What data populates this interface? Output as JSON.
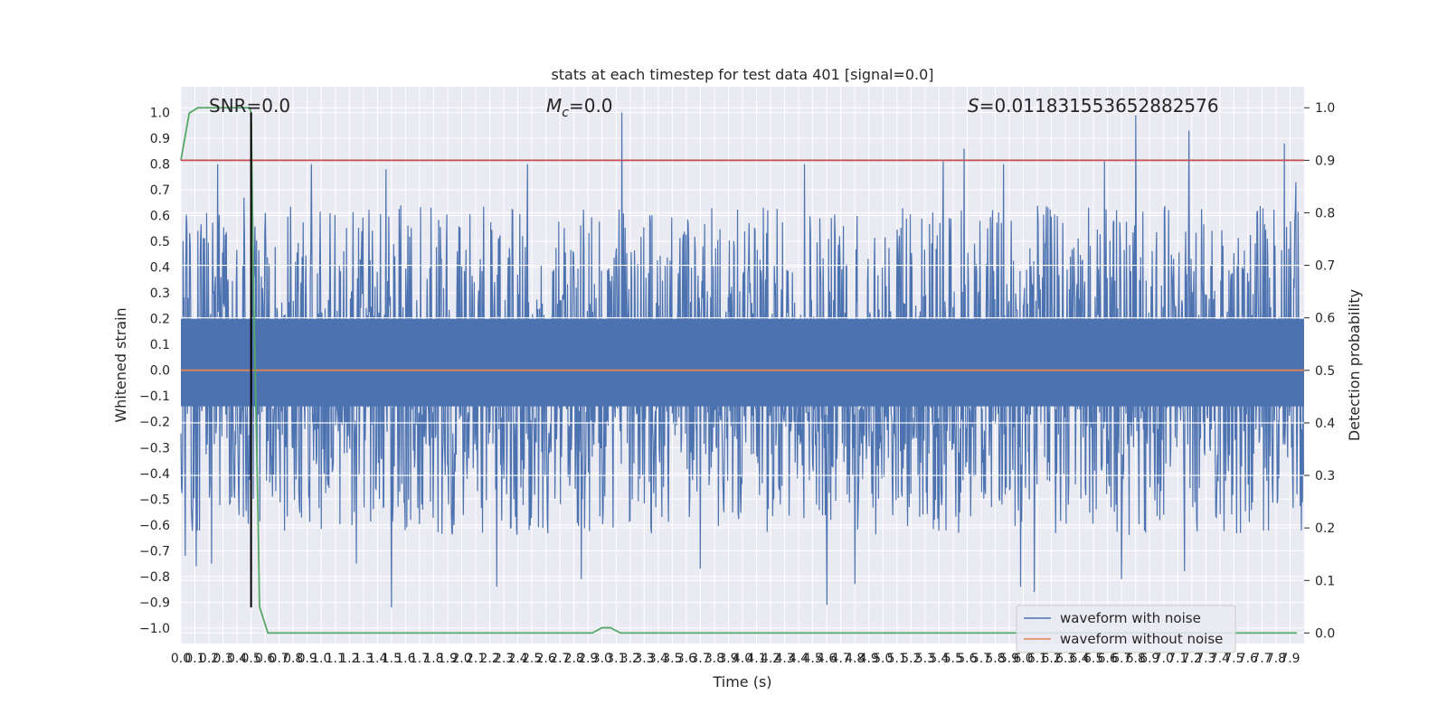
{
  "chart_data": {
    "type": "line",
    "title": "stats at each timestep for test data 401 [signal=0.0]",
    "xlabel": "Time (s)",
    "ylabel_left": "Whitened strain",
    "ylabel_right": "Detection probability",
    "xlim": [
      0.0,
      8.0
    ],
    "ylim_left": [
      -1.06,
      1.1
    ],
    "ylim_right": [
      -0.02,
      1.04
    ],
    "x_ticks": [
      "0.0",
      "0.1",
      "0.2",
      "0.3",
      "0.4",
      "0.5",
      "0.6",
      "0.7",
      "0.8",
      "0.9",
      "1.0",
      "1.1",
      "1.2",
      "1.3",
      "1.4",
      "1.5",
      "1.6",
      "1.7",
      "1.8",
      "1.9",
      "2.0",
      "2.1",
      "2.2",
      "2.3",
      "2.4",
      "2.5",
      "2.6",
      "2.7",
      "2.8",
      "2.9",
      "3.0",
      "3.1",
      "3.2",
      "3.3",
      "3.4",
      "3.5",
      "3.6",
      "3.7",
      "3.8",
      "3.9",
      "4.0",
      "4.1",
      "4.2",
      "4.3",
      "4.4",
      "4.5",
      "4.6",
      "4.7",
      "4.8",
      "4.9",
      "5.0",
      "5.1",
      "5.2",
      "5.3",
      "5.4",
      "5.5",
      "5.6",
      "5.7",
      "5.8",
      "5.9",
      "6.0",
      "6.1",
      "6.2",
      "6.3",
      "6.4",
      "6.5",
      "6.6",
      "6.7",
      "6.8",
      "6.9",
      "7.0",
      "7.1",
      "7.2",
      "7.3",
      "7.4",
      "7.5",
      "7.6",
      "7.7",
      "7.8",
      "7.9"
    ],
    "y_ticks_left": [
      "−1.0",
      "−0.9",
      "−0.8",
      "−0.7",
      "−0.6",
      "−0.5",
      "−0.4",
      "−0.3",
      "−0.2",
      "−0.1",
      "0.0",
      "0.1",
      "0.2",
      "0.3",
      "0.4",
      "0.5",
      "0.6",
      "0.7",
      "0.8",
      "0.9",
      "1.0"
    ],
    "y_ticks_right": [
      "0.0",
      "0.1",
      "0.2",
      "0.3",
      "0.4",
      "0.5",
      "0.6",
      "0.7",
      "0.8",
      "0.9",
      "1.0"
    ],
    "annotations": {
      "snr_label": "SNR=0.0",
      "mc_symbol": "M",
      "mc_sub": "c",
      "mc_value": "=0.0",
      "s_symbol": "S",
      "s_value": "=0.011831553652882576"
    },
    "series": [
      {
        "name": "waveform with noise",
        "color": "#4c72b0",
        "axis": "left",
        "sample_rate": 256,
        "envelope_typical_abs": 0.42,
        "peaks": [
          {
            "x": 0.45,
            "y": 0.67
          },
          {
            "x": 0.5,
            "y": 0.72
          },
          {
            "x": 0.26,
            "y": 0.8
          },
          {
            "x": 0.93,
            "y": 0.8
          },
          {
            "x": 1.46,
            "y": 0.78
          },
          {
            "x": 2.47,
            "y": 0.8
          },
          {
            "x": 3.14,
            "y": 1.0
          },
          {
            "x": 4.44,
            "y": 0.8
          },
          {
            "x": 5.43,
            "y": 0.81
          },
          {
            "x": 5.58,
            "y": 0.86
          },
          {
            "x": 5.86,
            "y": 0.8
          },
          {
            "x": 6.58,
            "y": 0.81
          },
          {
            "x": 6.8,
            "y": 0.99
          },
          {
            "x": 7.18,
            "y": 0.93
          },
          {
            "x": 7.86,
            "y": 0.88
          },
          {
            "x": 7.94,
            "y": 0.73
          },
          {
            "x": 0.03,
            "y": -0.72
          },
          {
            "x": 0.11,
            "y": -0.76
          },
          {
            "x": 0.22,
            "y": -0.75
          },
          {
            "x": 0.5,
            "y": -0.83
          },
          {
            "x": 1.25,
            "y": -0.75
          },
          {
            "x": 1.5,
            "y": -0.92
          },
          {
            "x": 2.25,
            "y": -0.84
          },
          {
            "x": 2.85,
            "y": -0.81
          },
          {
            "x": 3.7,
            "y": -0.77
          },
          {
            "x": 4.6,
            "y": -0.91
          },
          {
            "x": 4.8,
            "y": -0.83
          },
          {
            "x": 5.98,
            "y": -0.84
          },
          {
            "x": 6.08,
            "y": -0.86
          },
          {
            "x": 6.7,
            "y": -0.81
          },
          {
            "x": 7.15,
            "y": -0.78
          }
        ]
      },
      {
        "name": "waveform without noise",
        "color": "#dd8452",
        "axis": "left",
        "x": [
          0.0,
          8.0
        ],
        "y": [
          0.0,
          0.0
        ]
      },
      {
        "color": "#55a868",
        "axis": "right",
        "x": [
          0.0,
          0.06,
          0.12,
          0.18,
          0.3,
          0.42,
          0.49,
          0.5,
          0.52,
          0.55,
          0.56,
          0.62,
          0.7,
          1.5,
          2.93,
          3.0,
          3.06,
          3.13,
          3.2,
          7.95
        ],
        "y": [
          0.9,
          0.99,
          1.0,
          1.0,
          1.0,
          1.0,
          1.0,
          0.99,
          0.62,
          0.22,
          0.05,
          0.0,
          0.0,
          0.0,
          0.0,
          0.01,
          0.01,
          0.0,
          0.0,
          0.0
        ]
      },
      {
        "color": "#c44e52",
        "axis": "right",
        "x": [
          0.0,
          8.0
        ],
        "y": [
          0.9,
          0.9
        ]
      },
      {
        "color": "#000000",
        "axis": "left",
        "type": "vline",
        "x": [
          0.5,
          0.5
        ],
        "y": [
          -0.92,
          1.0
        ]
      }
    ],
    "legend": {
      "placement": "lower-right",
      "entries": [
        "waveform with noise",
        "waveform without noise"
      ]
    },
    "grid": true,
    "background_color": "#eaeaf2",
    "grid_color": "#ffffff"
  }
}
